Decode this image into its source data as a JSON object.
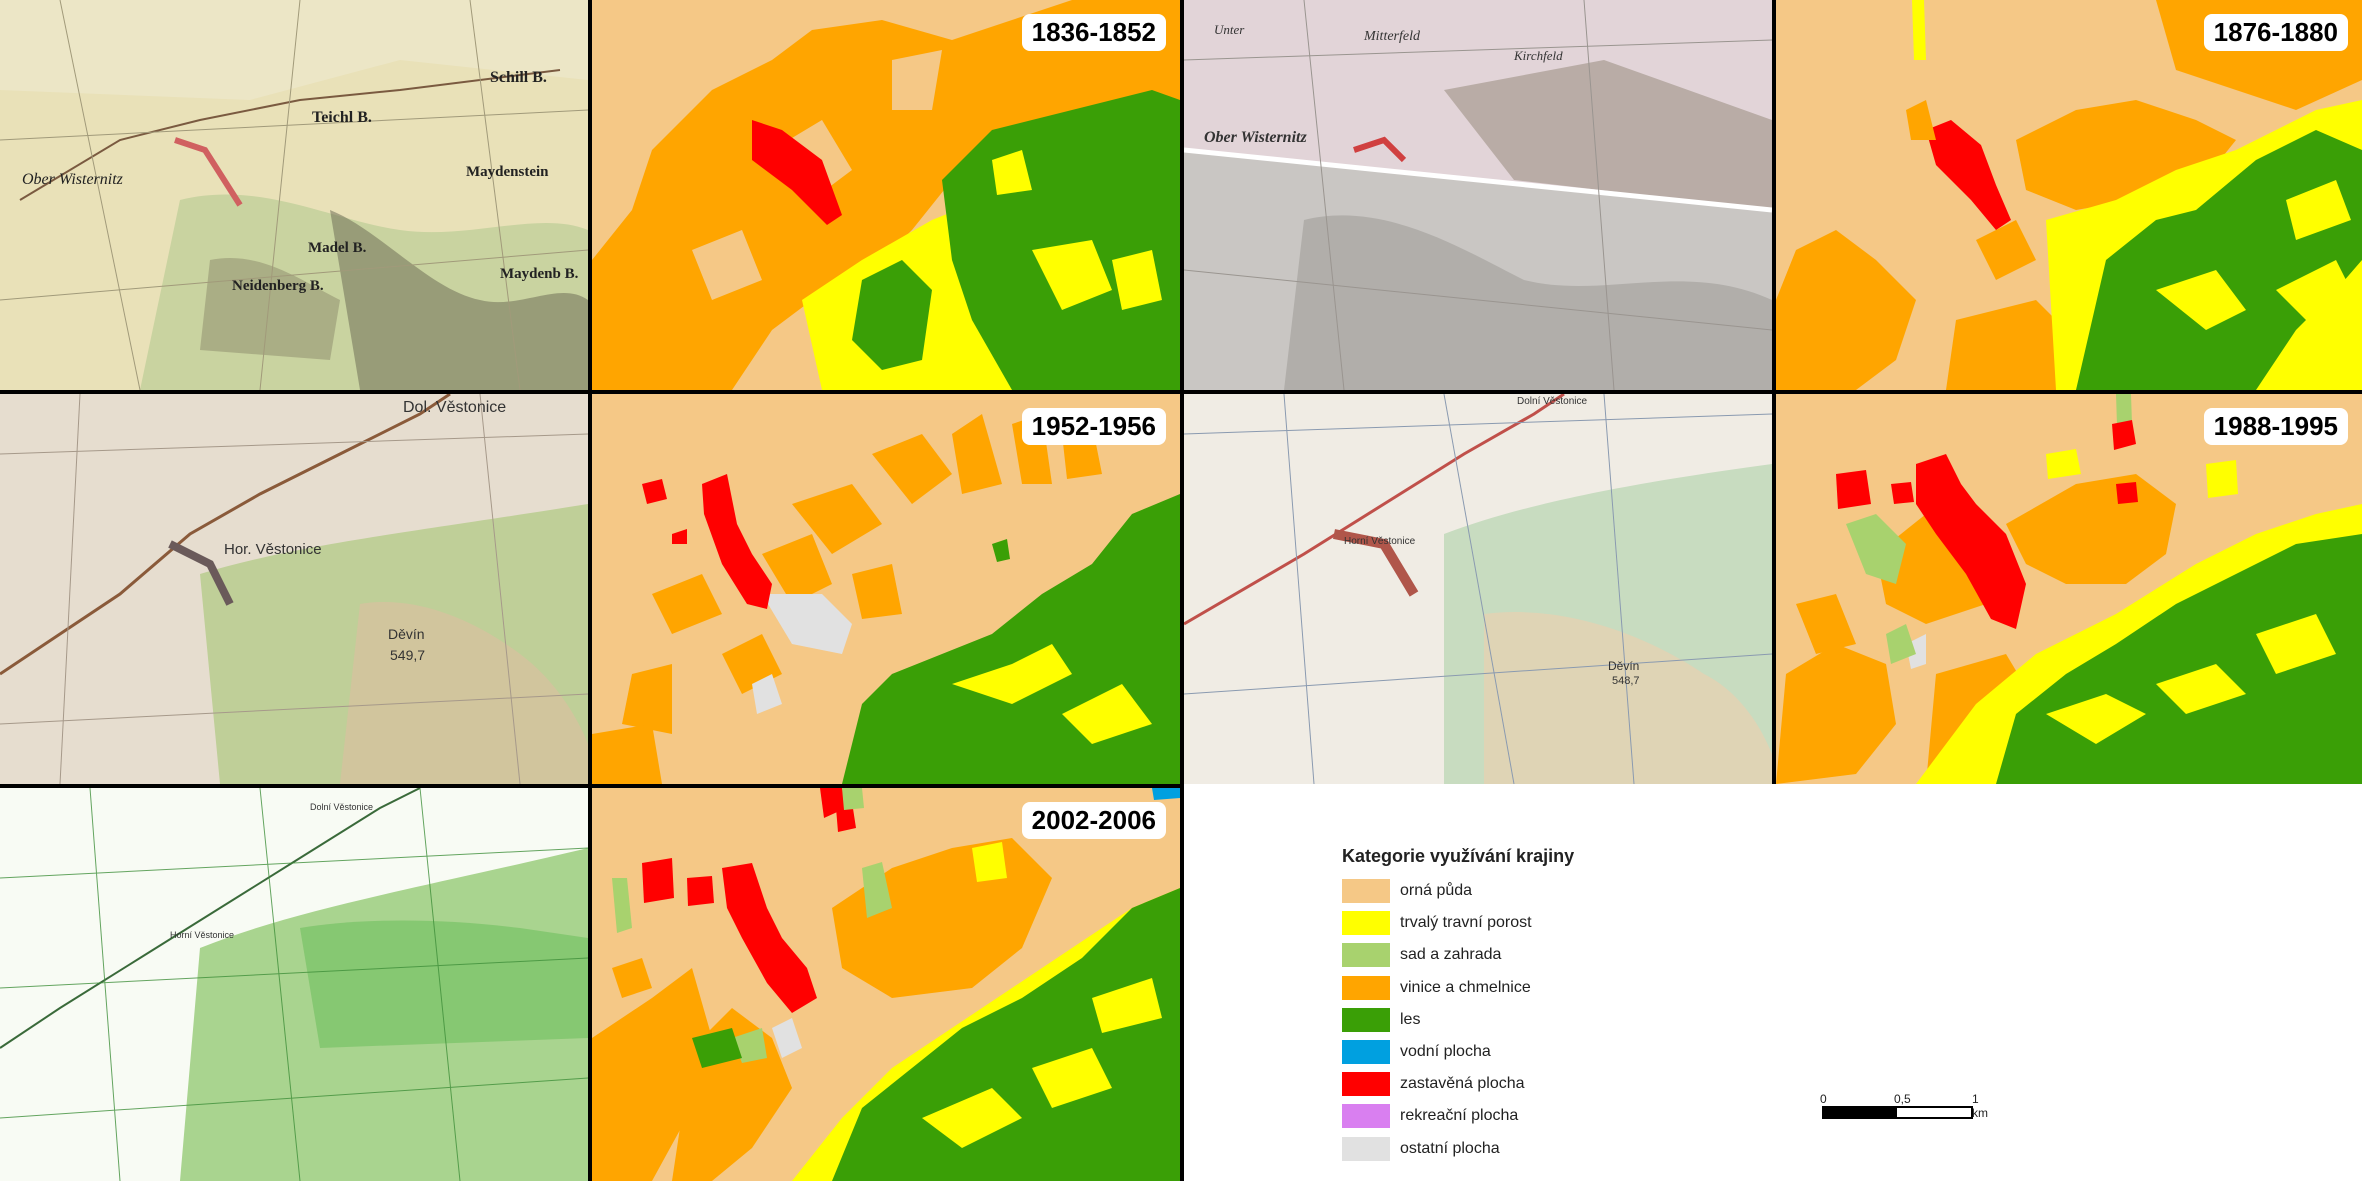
{
  "panels": [
    {
      "id": "map-1836",
      "type": "historic",
      "year": "",
      "palette": [
        "#e9e1b8",
        "#cdd5a0",
        "#8c8a6a"
      ]
    },
    {
      "id": "lu-1836",
      "type": "landuse",
      "year": "1836-1852"
    },
    {
      "id": "map-1876",
      "type": "historic",
      "year": "",
      "palette": [
        "#cfc8c0",
        "#d9d4cf",
        "#8d8a86"
      ]
    },
    {
      "id": "lu-1876",
      "type": "landuse",
      "year": "1876-1880"
    },
    {
      "id": "map-1952",
      "type": "historic",
      "year": "",
      "palette": [
        "#e6ddcf",
        "#bfcf98",
        "#a08c70"
      ]
    },
    {
      "id": "lu-1952",
      "type": "landuse",
      "year": "1952-1956"
    },
    {
      "id": "map-1988",
      "type": "historic",
      "year": "",
      "palette": [
        "#f0ece4",
        "#c8dcc0",
        "#b0564a"
      ]
    },
    {
      "id": "lu-1988",
      "type": "landuse",
      "year": "1988-1995"
    },
    {
      "id": "map-2002",
      "type": "historic",
      "year": "",
      "palette": [
        "#f8fbf4",
        "#a9d48f",
        "#3f8f3a"
      ]
    },
    {
      "id": "lu-2002",
      "type": "landuse",
      "year": "2002-2006"
    }
  ],
  "historic_map_labels": {
    "map1836": [
      "Ober Wisternitz",
      "Teichl B.",
      "Schill B.",
      "Maydenstein",
      "Madel B.",
      "Neidenberg B.",
      "Maydenb B."
    ],
    "map1876": [
      "Unter",
      "Mitterfeld",
      "Ober Wisternitz",
      "Kirchfeld"
    ],
    "map1952": [
      "Dol. Věstonice",
      "Hor. Věstonice",
      "Děvín",
      "549,7"
    ],
    "map1988": [
      "Dolní Věstonice",
      "Horní Věstonice",
      "Děvín",
      "548,7"
    ],
    "map2002": [
      "Dolní Věstonice",
      "Horní Věstonice"
    ]
  },
  "legend": {
    "title": "Kategorie využívání krajiny",
    "items": [
      {
        "label": "orná půda",
        "color": "#f5c886"
      },
      {
        "label": "trvalý travní porost",
        "color": "#ffff00"
      },
      {
        "label": "sad a zahrada",
        "color": "#a8d26e"
      },
      {
        "label": "vinice a chmelnice",
        "color": "#ffa500"
      },
      {
        "label": "les",
        "color": "#3a9f06"
      },
      {
        "label": "vodní plocha",
        "color": "#00a0e0"
      },
      {
        "label": "zastavěná plocha",
        "color": "#ff0000"
      },
      {
        "label": "rekreační plocha",
        "color": "#d97ff0"
      },
      {
        "label": "ostatní plocha",
        "color": "#e1e1e1"
      }
    ]
  },
  "scale": {
    "ticks": [
      "0",
      "0,5",
      "1 km"
    ]
  }
}
